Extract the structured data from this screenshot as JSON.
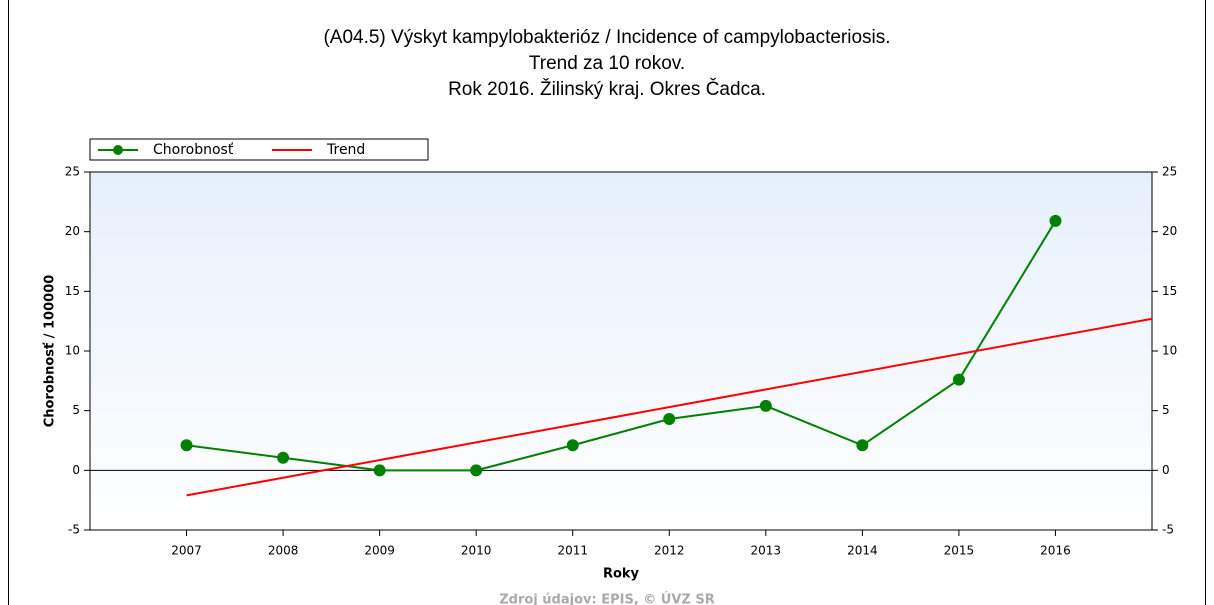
{
  "chart_data": {
    "type": "line",
    "title": [
      "(A04.5) Výskyt kampylobakterióz / Incidence of campylobacteriosis.",
      "Trend za 10 rokov.",
      "Rok 2016. Žilinský kraj. Okres Čadca."
    ],
    "y_label": "Chorobnosť / 100000",
    "x_label": "Roky",
    "source": "Zdroj údajov: EPIS, © ÚVZ SR",
    "x": [
      2007,
      2008,
      2009,
      2010,
      2011,
      2012,
      2013,
      2014,
      2015,
      2016
    ],
    "series": [
      {
        "name": "Chorobnosť",
        "color": "#008000",
        "x": [
          2007,
          2008,
          2009,
          2010,
          2011,
          2012,
          2013,
          2014,
          2015,
          2016
        ],
        "values": [
          2.1,
          1.05,
          0,
          0,
          2.1,
          4.3,
          5.4,
          2.1,
          7.6,
          20.9
        ]
      },
      {
        "name": "Trend",
        "color": "#ff0000",
        "x": [
          2007,
          2017
        ],
        "values": [
          -2.1,
          12.7
        ]
      }
    ],
    "xlim": [
      2006,
      2017
    ],
    "xticks": [
      2007,
      2008,
      2009,
      2010,
      2011,
      2012,
      2013,
      2014,
      2015,
      2016
    ],
    "ylim": [
      -5,
      25
    ],
    "yticks": [
      -5,
      0,
      5,
      10,
      15,
      20,
      25
    ],
    "y2lim": [
      -5,
      25
    ],
    "y2ticks": [
      -5,
      0,
      5,
      10,
      15,
      20,
      25
    ],
    "legend": "top-left"
  }
}
